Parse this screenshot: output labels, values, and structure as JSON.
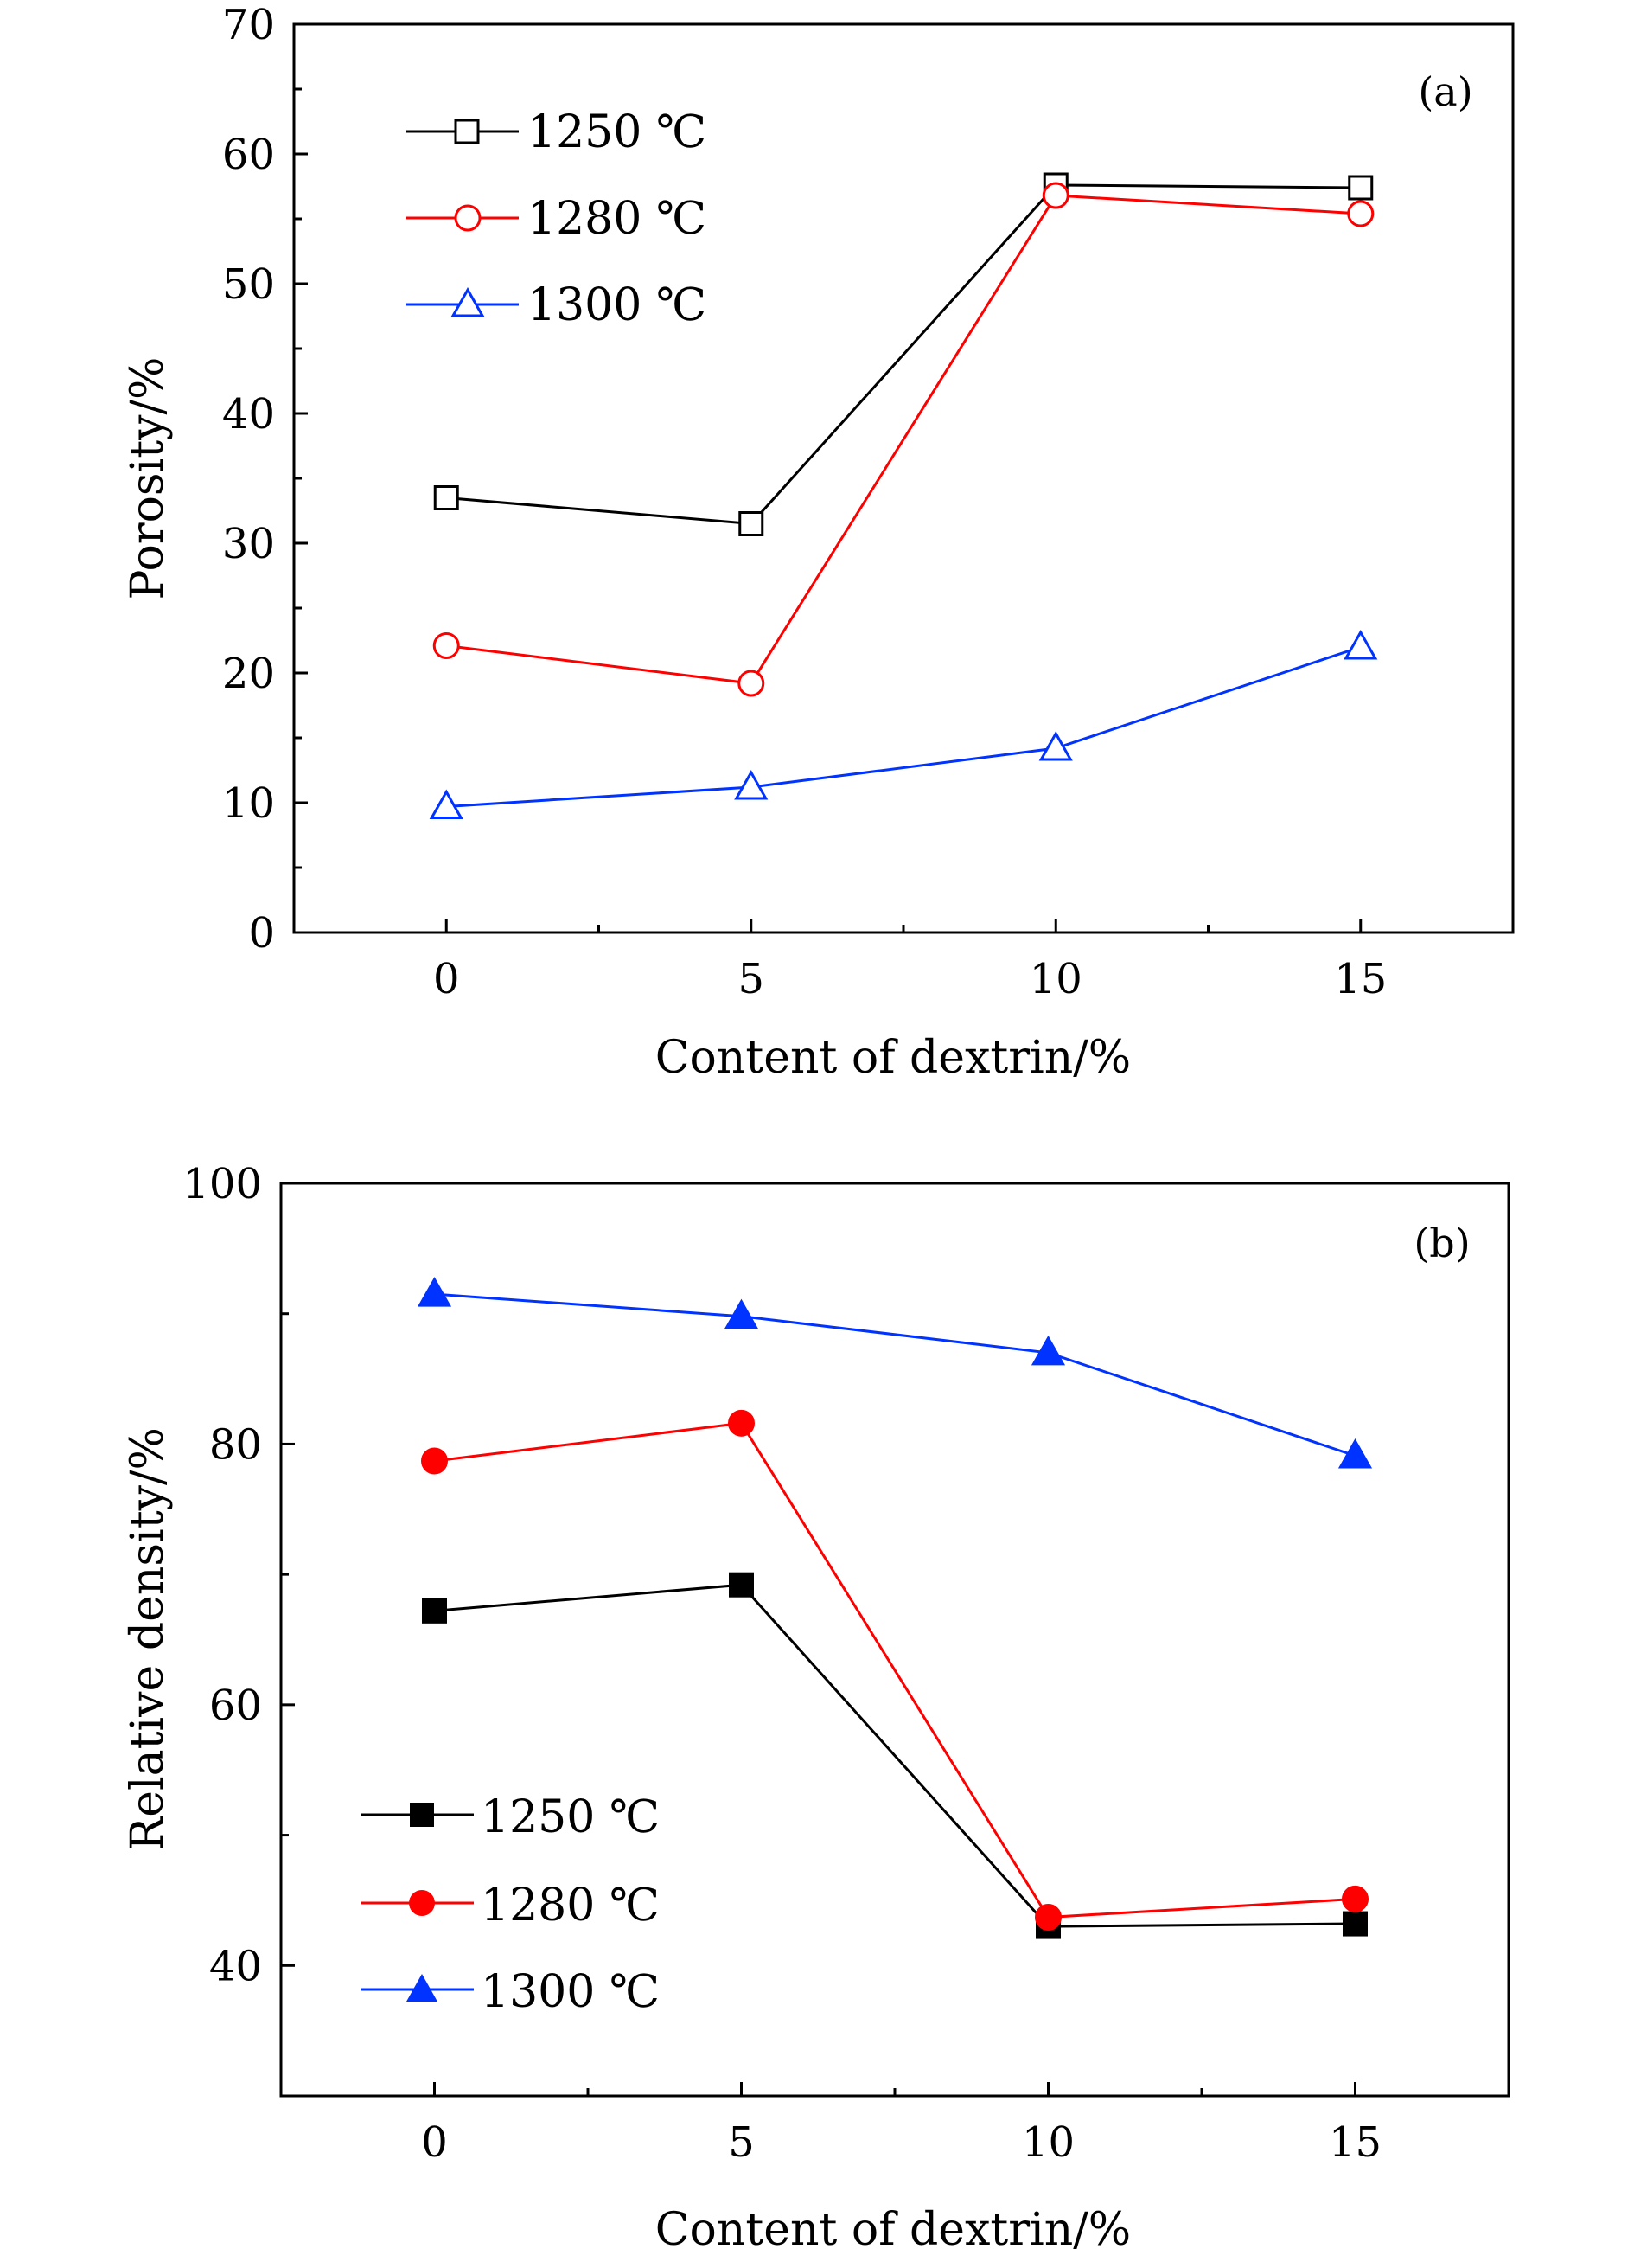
{
  "chart_data": [
    {
      "type": "line",
      "panel_label": "(a)",
      "xlabel": "Content of dextrin/%",
      "ylabel": "Porosity/%",
      "xlim": [
        -2.5,
        17.5
      ],
      "ylim": [
        0,
        70
      ],
      "xticks": [
        0,
        5,
        10,
        15
      ],
      "yticks": [
        0,
        10,
        20,
        30,
        40,
        50,
        60,
        70
      ],
      "x": [
        0,
        5,
        10,
        15
      ],
      "legend_position": "top-left",
      "grid": false,
      "series": [
        {
          "name": "1250 ℃",
          "color": "#000000",
          "marker": "square",
          "filled": false,
          "values": [
            33.5,
            31.5,
            57.6,
            57.4
          ]
        },
        {
          "name": "1280 ℃",
          "color": "#ff0000",
          "marker": "circle",
          "filled": false,
          "values": [
            22.1,
            19.2,
            56.8,
            55.4
          ]
        },
        {
          "name": "1300 ℃",
          "color": "#0033ff",
          "marker": "triangle",
          "filled": false,
          "values": [
            9.7,
            11.2,
            14.2,
            22.0
          ]
        }
      ]
    },
    {
      "type": "line",
      "panel_label": "(b)",
      "xlabel": "Content of dextrin/%",
      "ylabel": "Relative density/%",
      "xlim": [
        -2.5,
        17.5
      ],
      "ylim": [
        30,
        100
      ],
      "xticks": [
        0,
        5,
        10,
        15
      ],
      "yticks": [
        40,
        60,
        80,
        100
      ],
      "x": [
        0,
        5,
        10,
        15
      ],
      "legend_position": "bottom-left",
      "grid": false,
      "series": [
        {
          "name": "1250 ℃",
          "color": "#000000",
          "marker": "square",
          "filled": true,
          "values": [
            67.2,
            69.2,
            43.0,
            43.2
          ]
        },
        {
          "name": "1280 ℃",
          "color": "#ff0000",
          "marker": "circle",
          "filled": true,
          "values": [
            78.7,
            81.6,
            43.7,
            45.1
          ]
        },
        {
          "name": "1300 ℃",
          "color": "#0033ff",
          "marker": "triangle",
          "filled": true,
          "values": [
            91.5,
            89.8,
            87.0,
            79.1
          ]
        }
      ]
    }
  ]
}
